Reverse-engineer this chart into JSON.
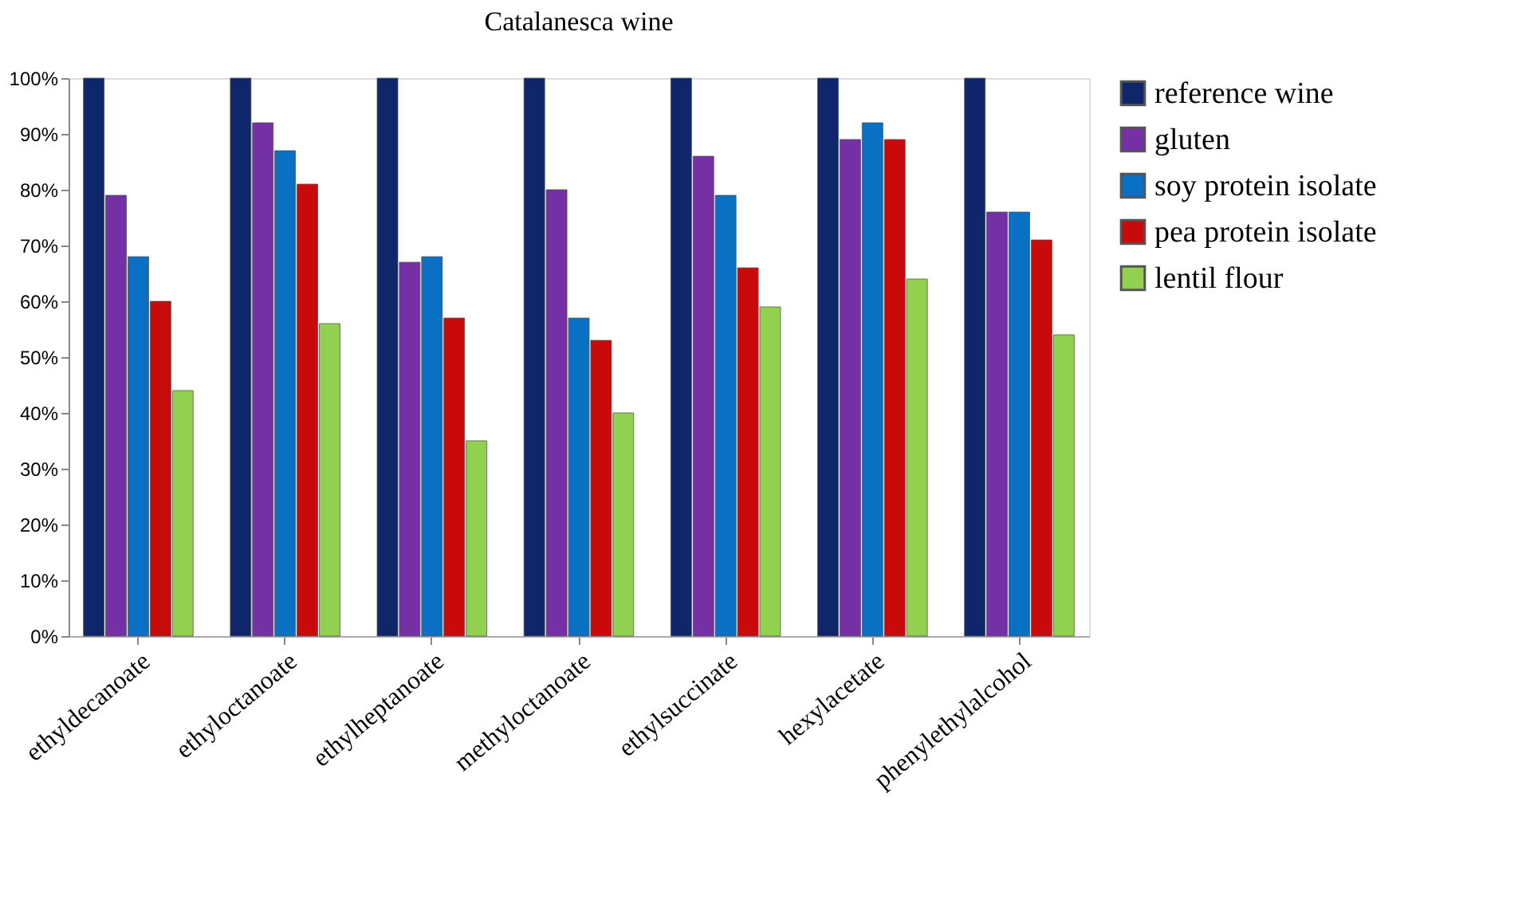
{
  "chart_data": {
    "type": "bar",
    "title": "Catalanesca wine",
    "categories": [
      "ethyldecanoate",
      "ethyloctanoate",
      "ethylheptanoate",
      "methyloctanoate",
      "ethylsuccinate",
      "hexylacetate",
      "phenylethylalcohol"
    ],
    "series": [
      {
        "name": "reference wine",
        "color": "#10266a",
        "values": [
          100,
          100,
          100,
          100,
          100,
          100,
          100
        ]
      },
      {
        "name": "gluten",
        "color": "#7530a5",
        "values": [
          79,
          92,
          67,
          80,
          86,
          89,
          76
        ]
      },
      {
        "name": "soy protein isolate",
        "color": "#0a70c4",
        "values": [
          68,
          87,
          68,
          57,
          79,
          92,
          76
        ]
      },
      {
        "name": "pea protein isolate",
        "color": "#c80a0a",
        "values": [
          60,
          81,
          57,
          53,
          66,
          89,
          71
        ]
      },
      {
        "name": "lentil flour",
        "color": "#92d050",
        "values": [
          44,
          56,
          35,
          40,
          59,
          64,
          54
        ]
      }
    ],
    "ylim": [
      0,
      100
    ],
    "yticks": [
      {
        "value": 0,
        "label": "0%"
      },
      {
        "value": 10,
        "label": "10%"
      },
      {
        "value": 20,
        "label": "20%"
      },
      {
        "value": 30,
        "label": "30%"
      },
      {
        "value": 40,
        "label": "40%"
      },
      {
        "value": 50,
        "label": "50%"
      },
      {
        "value": 60,
        "label": "60%"
      },
      {
        "value": 70,
        "label": "70%"
      },
      {
        "value": 80,
        "label": "80%"
      },
      {
        "value": 90,
        "label": "90%"
      },
      {
        "value": 100,
        "label": "100%"
      }
    ],
    "legend": "right",
    "grid": false
  }
}
